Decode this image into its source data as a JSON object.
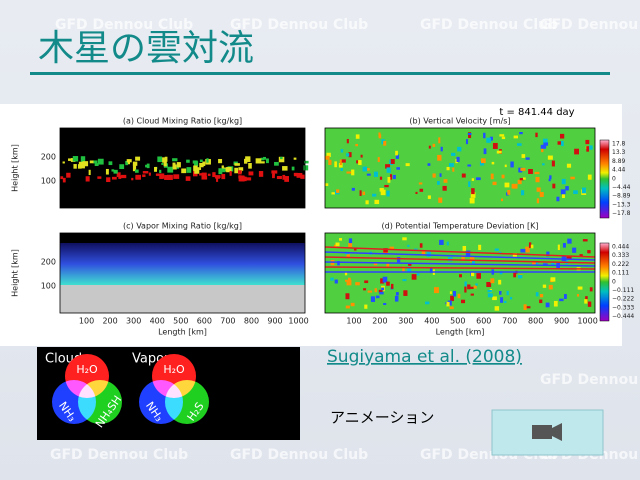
{
  "title": "木星の雲対流",
  "watermark": "GFD Dennou Club",
  "figure": {
    "time_label": "t = 841.44 day",
    "panels": [
      {
        "title": "(a) Cloud Mixing Ratio [kg/kg]"
      },
      {
        "title": "(b) Vertical Velocity [m/s]"
      },
      {
        "title": "(c) Vapor Mixing Ratio [kg/kg]"
      },
      {
        "title": "(d) Potential Temperature Deviation [K]"
      }
    ],
    "y_axis_label": "Height [km]",
    "x_axis_label": "Length [km]",
    "y_ticks": [
      "200",
      "100"
    ],
    "x_ticks": [
      "100",
      "200",
      "300",
      "400",
      "500",
      "600",
      "700",
      "800",
      "900",
      "1000"
    ],
    "colorbars": [
      [
        "17.8",
        "13.3",
        "8.89",
        "4.44",
        "0",
        "−4.44",
        "−8.89",
        "−13.3",
        "−17.8"
      ],
      [
        "0.444",
        "0.333",
        "0.222",
        "0.111",
        "0",
        "−0.111",
        "−0.222",
        "−0.333",
        "−0.444"
      ]
    ]
  },
  "legend": {
    "cloud": {
      "label": "Cloud",
      "circles": [
        "H₂O",
        "NH₃",
        "NH₄SH"
      ]
    },
    "vapor": {
      "label": "Vapor",
      "circles": [
        "H₂O",
        "NH₃",
        "H₂S"
      ]
    }
  },
  "reference": "Sugiyama et al. (2008)",
  "animation_label": "アニメーション"
}
